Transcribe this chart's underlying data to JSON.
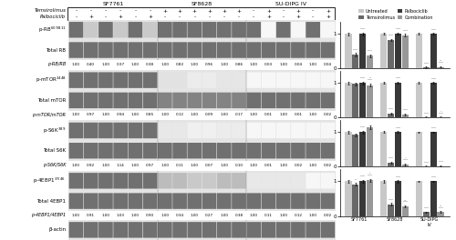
{
  "cell_lines": [
    "SF7761",
    "SF8628",
    "SU-DIPG IV"
  ],
  "legend_labels": [
    "Untreated",
    "Temsirolimus",
    "Palbociclib",
    "Combination"
  ],
  "legend_colors": [
    "#c8c8c8",
    "#686868",
    "#383838",
    "#989898"
  ],
  "bar_colors": [
    "#c8c8c8",
    "#686868",
    "#383838",
    "#989898"
  ],
  "background_color": "#ffffff",
  "figure_width": 5.0,
  "figure_height": 2.64,
  "dpi": 100,
  "densitometry": {
    "p-RB/RB": [
      [
        1.0,
        0.4,
        1.0,
        0.37,
        1.0,
        0.38
      ],
      [
        1.0,
        0.82,
        1.0,
        0.96,
        1.0,
        0.86
      ],
      [
        1.0,
        0.03,
        1.0,
        0.04,
        1.0,
        0.04
      ]
    ],
    "p-mTOR/mTOR": [
      [
        1.0,
        0.97,
        1.0,
        0.94,
        1.0,
        0.85
      ],
      [
        1.0,
        0.12,
        1.0,
        0.09,
        1.0,
        0.17
      ],
      [
        1.0,
        0.01,
        1.0,
        0.01,
        1.0,
        0.02
      ]
    ],
    "p-S6K/S6K": [
      [
        1.0,
        0.92,
        1.0,
        1.14,
        1.0,
        0.97
      ],
      [
        1.0,
        0.11,
        1.0,
        0.07,
        1.0,
        0.1
      ],
      [
        1.0,
        0.01,
        1.0,
        0.02,
        1.0,
        0.02
      ]
    ],
    "p-4EBP1/4EBP1": [
      [
        1.0,
        0.91,
        1.0,
        1.03,
        1.0,
        0.9
      ],
      [
        1.0,
        0.34,
        1.0,
        0.27,
        1.0,
        0.38
      ],
      [
        1.0,
        0.11,
        1.0,
        0.12,
        1.0,
        0.02
      ]
    ]
  },
  "bar_data": {
    "p-RB/RB": {
      "SF7761": [
        1.0,
        0.4,
        1.0,
        0.37
      ],
      "SF8628": [
        1.0,
        0.82,
        1.0,
        0.96
      ],
      "SU-DIPG IV": [
        1.0,
        0.03,
        1.0,
        0.04
      ]
    },
    "p-mTOR/mTOR": {
      "SF7761": [
        1.0,
        0.97,
        1.0,
        0.94
      ],
      "SF8628": [
        1.0,
        0.12,
        1.0,
        0.09
      ],
      "SU-DIPG IV": [
        1.0,
        0.01,
        1.0,
        0.01
      ]
    },
    "p-S6K/S6K": {
      "SF7761": [
        1.0,
        0.92,
        1.0,
        1.14
      ],
      "SF8628": [
        1.0,
        0.11,
        1.0,
        0.07
      ],
      "SU-DIPG IV": [
        1.0,
        0.01,
        1.0,
        0.02
      ]
    },
    "p-4EBP1/4EBP1": {
      "SF7761": [
        1.0,
        0.91,
        1.0,
        1.03
      ],
      "SF8628": [
        1.0,
        0.34,
        1.0,
        0.27
      ],
      "SU-DIPG IV": [
        1.0,
        0.11,
        1.0,
        0.12
      ]
    }
  },
  "band_intensities": {
    "p-RB": [
      [
        0.75,
        0.28,
        0.75,
        0.28,
        0.75,
        0.28
      ],
      [
        0.75,
        0.75,
        0.75,
        0.75,
        0.75,
        0.75
      ],
      [
        0.75,
        0.04,
        0.75,
        0.04,
        0.75,
        0.04
      ]
    ],
    "Total RB": [
      [
        0.75,
        0.75,
        0.75,
        0.75,
        0.75,
        0.75
      ],
      [
        0.75,
        0.75,
        0.75,
        0.75,
        0.75,
        0.75
      ],
      [
        0.75,
        0.75,
        0.75,
        0.75,
        0.75,
        0.75
      ]
    ],
    "p-mTOR": [
      [
        0.75,
        0.75,
        0.75,
        0.75,
        0.75,
        0.75
      ],
      [
        0.15,
        0.15,
        0.1,
        0.1,
        0.13,
        0.13
      ],
      [
        0.04,
        0.04,
        0.04,
        0.04,
        0.04,
        0.04
      ]
    ],
    "Total mTOR": [
      [
        0.75,
        0.75,
        0.75,
        0.75,
        0.75,
        0.75
      ],
      [
        0.65,
        0.65,
        0.65,
        0.65,
        0.65,
        0.65
      ],
      [
        0.75,
        0.75,
        0.75,
        0.75,
        0.75,
        0.75
      ]
    ],
    "p-S6K": [
      [
        0.75,
        0.75,
        0.75,
        0.75,
        0.75,
        0.75
      ],
      [
        0.12,
        0.12,
        0.08,
        0.08,
        0.1,
        0.1
      ],
      [
        0.04,
        0.04,
        0.04,
        0.04,
        0.04,
        0.04
      ]
    ],
    "Total S6K": [
      [
        0.75,
        0.75,
        0.75,
        0.75,
        0.75,
        0.75
      ],
      [
        0.75,
        0.75,
        0.75,
        0.75,
        0.75,
        0.75
      ],
      [
        0.75,
        0.75,
        0.75,
        0.75,
        0.75,
        0.75
      ]
    ],
    "p-4EBP1": [
      [
        0.75,
        0.75,
        0.75,
        0.75,
        0.75,
        0.75
      ],
      [
        0.35,
        0.35,
        0.28,
        0.28,
        0.35,
        0.35
      ],
      [
        0.12,
        0.12,
        0.12,
        0.12,
        0.04,
        0.04
      ]
    ],
    "Total 4EBP1": [
      [
        0.75,
        0.75,
        0.75,
        0.75,
        0.75,
        0.75
      ],
      [
        0.75,
        0.75,
        0.75,
        0.75,
        0.75,
        0.75
      ],
      [
        0.75,
        0.75,
        0.75,
        0.75,
        0.75,
        0.75
      ]
    ],
    "beta-actin": [
      [
        0.75,
        0.75,
        0.75,
        0.75,
        0.75,
        0.75
      ],
      [
        0.75,
        0.75,
        0.75,
        0.75,
        0.75,
        0.75
      ],
      [
        0.75,
        0.75,
        0.75,
        0.75,
        0.75,
        0.75
      ]
    ]
  },
  "tem_signs": [
    [
      "-",
      "-",
      "-",
      "-",
      "-",
      "-"
    ],
    [
      "+",
      "+",
      "+",
      "+",
      "+",
      "+"
    ],
    [
      "-",
      "+",
      "-",
      "+",
      "-",
      "+"
    ]
  ],
  "palb_signs": [
    [
      "-",
      "+",
      "-",
      "+",
      "-",
      "+"
    ],
    [
      "-",
      "-",
      "-",
      "-",
      "-",
      "-"
    ],
    [
      "-",
      "+",
      "-",
      "+",
      "-",
      "+"
    ]
  ]
}
